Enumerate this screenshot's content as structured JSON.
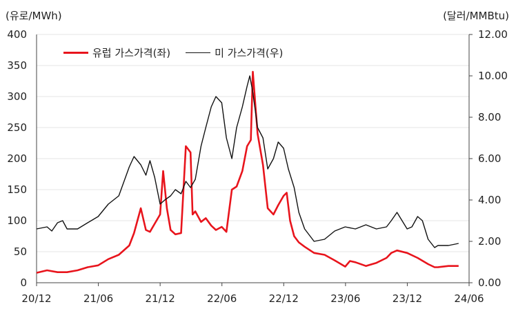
{
  "chart_data": {
    "type": "line",
    "left_unit": "(유로/MWh)",
    "right_unit": "(달러/MMBtu)",
    "x_ticks": [
      "20/12",
      "21/06",
      "21/12",
      "22/06",
      "22/12",
      "23/06",
      "23/12",
      "24/06"
    ],
    "y_left": {
      "min": 0,
      "max": 400,
      "ticks": [
        "0",
        "50",
        "100",
        "150",
        "200",
        "250",
        "300",
        "350",
        "400"
      ]
    },
    "y_right": {
      "min": 0,
      "max": 12,
      "ticks": [
        "0.00",
        "2.00",
        "4.00",
        "6.00",
        "8.00",
        "10.00",
        "12.00"
      ]
    },
    "grid": true,
    "legend_position": "top-left",
    "series": [
      {
        "name": "유럽 가스가격(좌)",
        "axis": "left",
        "color": "#e8141c",
        "x": [
          "2020-12-01",
          "2021-01-01",
          "2021-02-01",
          "2021-03-01",
          "2021-04-01",
          "2021-05-01",
          "2021-06-01",
          "2021-07-01",
          "2021-08-01",
          "2021-09-01",
          "2021-09-15",
          "2021-10-05",
          "2021-10-20",
          "2021-11-01",
          "2021-11-15",
          "2021-12-01",
          "2021-12-10",
          "2021-12-21",
          "2022-01-01",
          "2022-01-15",
          "2022-02-01",
          "2022-02-15",
          "2022-03-01",
          "2022-03-07",
          "2022-03-15",
          "2022-04-01",
          "2022-04-15",
          "2022-05-01",
          "2022-05-15",
          "2022-06-01",
          "2022-06-15",
          "2022-07-01",
          "2022-07-15",
          "2022-08-01",
          "2022-08-15",
          "2022-08-26",
          "2022-09-01",
          "2022-09-15",
          "2022-10-01",
          "2022-10-15",
          "2022-11-01",
          "2022-11-15",
          "2022-12-01",
          "2022-12-10",
          "2022-12-20",
          "2023-01-01",
          "2023-01-15",
          "2023-02-01",
          "2023-03-01",
          "2023-04-01",
          "2023-05-01",
          "2023-06-01",
          "2023-06-15",
          "2023-07-01",
          "2023-08-01",
          "2023-09-01",
          "2023-10-01",
          "2023-10-15",
          "2023-11-01",
          "2023-12-01",
          "2024-01-01",
          "2024-02-01",
          "2024-02-20",
          "2024-03-01",
          "2024-04-01",
          "2024-05-01"
        ],
        "values": [
          16,
          20,
          17,
          17,
          20,
          25,
          28,
          38,
          45,
          60,
          80,
          120,
          85,
          82,
          95,
          110,
          180,
          120,
          85,
          78,
          80,
          220,
          210,
          110,
          115,
          98,
          104,
          92,
          85,
          90,
          82,
          150,
          155,
          180,
          220,
          230,
          340,
          240,
          190,
          120,
          110,
          125,
          140,
          145,
          100,
          75,
          65,
          58,
          48,
          45,
          36,
          26,
          35,
          33,
          27,
          32,
          40,
          48,
          52,
          48,
          40,
          30,
          25,
          25,
          27,
          27
        ]
      },
      {
        "name": "미 가스가격(우)",
        "axis": "right",
        "color": "#111111",
        "x": [
          "2020-12-01",
          "2021-01-01",
          "2021-01-15",
          "2021-02-01",
          "2021-02-16",
          "2021-03-01",
          "2021-04-01",
          "2021-05-01",
          "2021-06-01",
          "2021-07-01",
          "2021-08-01",
          "2021-09-01",
          "2021-09-15",
          "2021-10-05",
          "2021-10-20",
          "2021-11-01",
          "2021-11-15",
          "2021-12-01",
          "2021-12-15",
          "2022-01-01",
          "2022-01-15",
          "2022-02-01",
          "2022-02-15",
          "2022-03-01",
          "2022-03-15",
          "2022-04-01",
          "2022-04-15",
          "2022-05-01",
          "2022-05-15",
          "2022-06-01",
          "2022-06-15",
          "2022-07-01",
          "2022-07-15",
          "2022-08-01",
          "2022-08-15",
          "2022-08-23",
          "2022-09-01",
          "2022-09-15",
          "2022-10-01",
          "2022-10-15",
          "2022-11-01",
          "2022-11-15",
          "2022-12-01",
          "2022-12-15",
          "2023-01-01",
          "2023-01-15",
          "2023-02-01",
          "2023-03-01",
          "2023-04-01",
          "2023-05-01",
          "2023-06-01",
          "2023-07-01",
          "2023-08-01",
          "2023-09-01",
          "2023-10-01",
          "2023-10-15",
          "2023-11-01",
          "2023-12-01",
          "2023-12-15",
          "2024-01-01",
          "2024-01-15",
          "2024-02-01",
          "2024-02-20",
          "2024-03-01",
          "2024-04-01",
          "2024-05-01"
        ],
        "values": [
          2.6,
          2.7,
          2.5,
          2.9,
          3.0,
          2.6,
          2.6,
          2.9,
          3.2,
          3.8,
          4.2,
          5.6,
          6.1,
          5.7,
          5.2,
          5.9,
          5.1,
          3.8,
          4.0,
          4.2,
          4.5,
          4.3,
          4.9,
          4.6,
          5.0,
          6.6,
          7.5,
          8.5,
          9.0,
          8.7,
          7.0,
          6.0,
          7.5,
          8.5,
          9.5,
          10.0,
          9.2,
          7.5,
          7.0,
          5.5,
          6.0,
          6.8,
          6.5,
          5.5,
          4.6,
          3.4,
          2.6,
          2.0,
          2.1,
          2.5,
          2.7,
          2.6,
          2.8,
          2.6,
          2.7,
          3.0,
          3.4,
          2.6,
          2.7,
          3.2,
          3.0,
          2.1,
          1.7,
          1.8,
          1.8,
          1.9
        ]
      }
    ]
  }
}
